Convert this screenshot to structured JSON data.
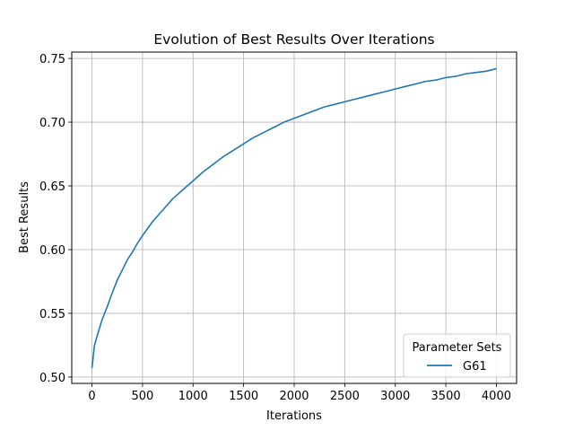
{
  "chart_data": {
    "type": "line",
    "title": "Evolution of Best Results Over Iterations",
    "xlabel": "Iterations",
    "ylabel": "Best Results",
    "xlim": [
      -200,
      4200
    ],
    "ylim": [
      0.495,
      0.755
    ],
    "xticks": [
      0,
      500,
      1000,
      1500,
      2000,
      2500,
      3000,
      3500,
      4000
    ],
    "xtick_labels": [
      "0",
      "500",
      "1000",
      "1500",
      "2000",
      "2500",
      "3000",
      "3500",
      "4000"
    ],
    "yticks": [
      0.5,
      0.55,
      0.6,
      0.65,
      0.7,
      0.75
    ],
    "ytick_labels": [
      "0.50",
      "0.55",
      "0.60",
      "0.65",
      "0.70",
      "0.75"
    ],
    "grid": true,
    "legend": {
      "title": "Parameter Sets",
      "placement": "bottom-right"
    },
    "series": [
      {
        "name": "G61",
        "color": "#1f77b4",
        "x": [
          0,
          25,
          50,
          100,
          150,
          200,
          250,
          300,
          350,
          400,
          450,
          500,
          600,
          700,
          800,
          900,
          1000,
          1100,
          1200,
          1300,
          1400,
          1500,
          1600,
          1700,
          1800,
          1900,
          2000,
          2100,
          2200,
          2300,
          2400,
          2500,
          2600,
          2700,
          2800,
          2900,
          3000,
          3100,
          3200,
          3300,
          3400,
          3500,
          3600,
          3700,
          3800,
          3900,
          4000
        ],
        "y": [
          0.507,
          0.525,
          0.532,
          0.545,
          0.555,
          0.566,
          0.576,
          0.584,
          0.592,
          0.598,
          0.605,
          0.611,
          0.622,
          0.631,
          0.64,
          0.647,
          0.654,
          0.661,
          0.667,
          0.673,
          0.678,
          0.683,
          0.688,
          0.692,
          0.696,
          0.7,
          0.703,
          0.706,
          0.709,
          0.712,
          0.714,
          0.716,
          0.718,
          0.72,
          0.722,
          0.724,
          0.726,
          0.728,
          0.73,
          0.732,
          0.733,
          0.735,
          0.736,
          0.738,
          0.739,
          0.74,
          0.742
        ]
      }
    ]
  }
}
